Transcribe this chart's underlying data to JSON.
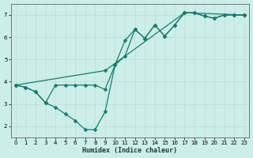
{
  "title": "",
  "xlabel": "Humidex (Indice chaleur)",
  "ylabel": "",
  "bg_color": "#cceee8",
  "grid_color": "#b8ddd8",
  "line_color": "#1a7a6a",
  "marker": "D",
  "markersize": 2.5,
  "linewidth": 0.9,
  "xlim": [
    -0.5,
    23.5
  ],
  "ylim": [
    1.5,
    7.5
  ],
  "xticks": [
    0,
    1,
    2,
    3,
    4,
    5,
    6,
    7,
    8,
    9,
    10,
    11,
    12,
    13,
    14,
    15,
    16,
    17,
    18,
    19,
    20,
    21,
    22,
    23
  ],
  "yticks": [
    2,
    3,
    4,
    5,
    6,
    7
  ],
  "lines": [
    {
      "x": [
        0,
        1,
        2,
        3,
        4,
        5,
        6,
        7,
        8,
        9,
        10,
        11,
        12,
        13,
        14,
        15,
        16,
        17,
        18,
        19,
        20,
        21,
        22,
        23
      ],
      "y": [
        3.85,
        3.75,
        3.55,
        3.05,
        3.85,
        3.85,
        3.85,
        3.85,
        3.85,
        3.65,
        4.75,
        5.15,
        6.35,
        5.95,
        6.55,
        6.05,
        6.55,
        7.1,
        7.1,
        6.95,
        6.85,
        7.0,
        7.0,
        7.0
      ]
    },
    {
      "x": [
        0,
        1,
        2,
        3,
        4,
        5,
        6,
        7,
        8,
        9,
        10,
        11,
        12,
        13,
        14,
        15,
        16,
        17,
        18,
        19,
        20,
        21,
        22,
        23
      ],
      "y": [
        3.85,
        3.75,
        3.55,
        3.05,
        2.85,
        2.55,
        2.25,
        1.85,
        1.85,
        2.65,
        4.75,
        5.85,
        6.35,
        5.95,
        6.55,
        6.05,
        6.55,
        7.1,
        7.1,
        6.95,
        6.85,
        7.0,
        7.0,
        7.0
      ]
    },
    {
      "x": [
        0,
        9,
        17,
        23
      ],
      "y": [
        3.85,
        4.5,
        7.1,
        7.0
      ]
    }
  ]
}
